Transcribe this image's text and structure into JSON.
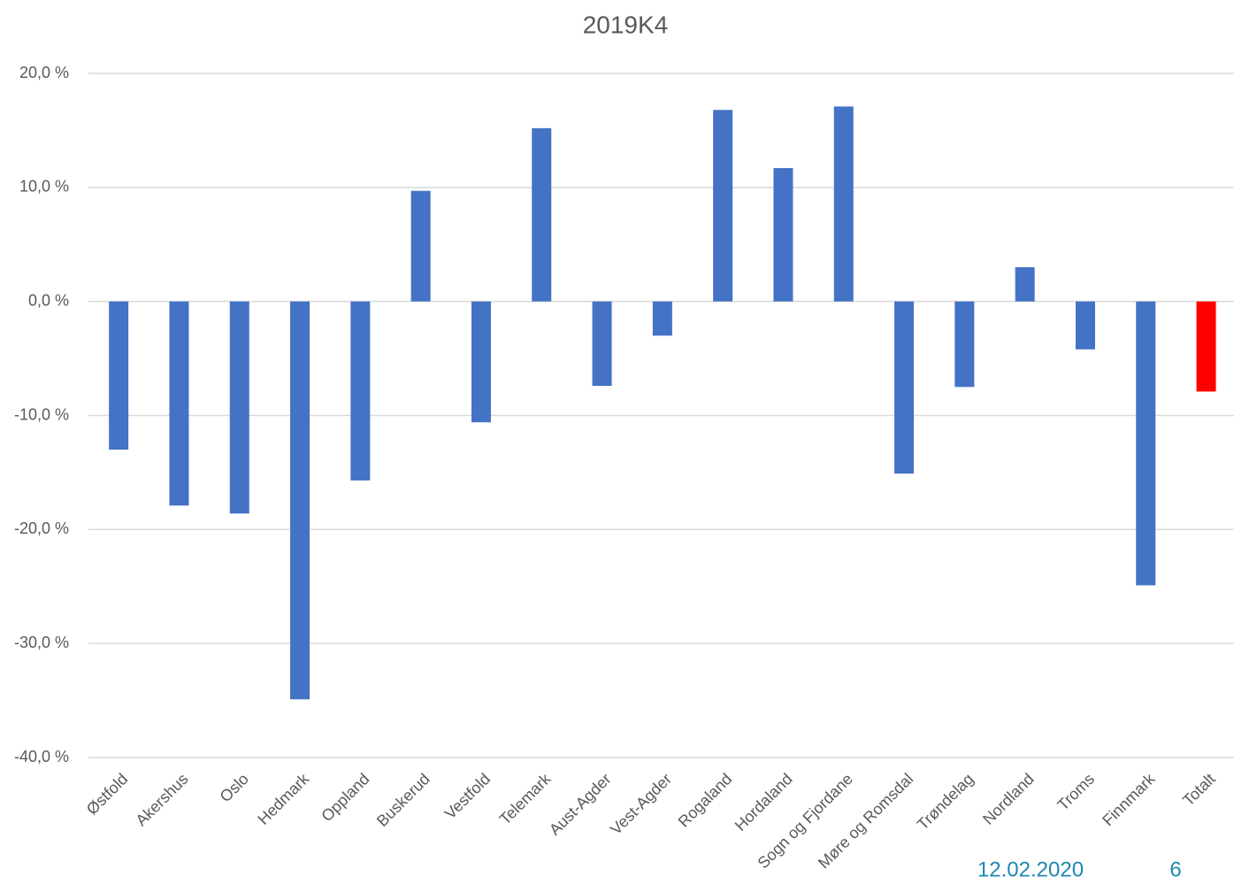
{
  "chart_data": {
    "type": "bar",
    "title": "2019K4",
    "categories": [
      "Østfold",
      "Akershus",
      "Oslo",
      "Hedmark",
      "Oppland",
      "Buskerud",
      "Vestfold",
      "Telemark",
      "Aust-Agder",
      "Vest-Agder",
      "Rogaland",
      "Hordaland",
      "Sogn og Fjordane",
      "Møre og Romsdal",
      "Trøndelag",
      "Nordland",
      "Troms",
      "Finnmark",
      "Totalt"
    ],
    "values": [
      -13.0,
      -17.9,
      -18.6,
      -34.9,
      -15.7,
      9.7,
      -10.6,
      15.2,
      -7.4,
      -3.0,
      16.8,
      11.7,
      17.1,
      -15.1,
      -7.5,
      3.0,
      -4.2,
      -24.9,
      -7.9
    ],
    "colors": [
      "#4472c4",
      "#4472c4",
      "#4472c4",
      "#4472c4",
      "#4472c4",
      "#4472c4",
      "#4472c4",
      "#4472c4",
      "#4472c4",
      "#4472c4",
      "#4472c4",
      "#4472c4",
      "#4472c4",
      "#4472c4",
      "#4472c4",
      "#4472c4",
      "#4472c4",
      "#4472c4",
      "#ff0000"
    ],
    "ylim": [
      -40,
      20
    ],
    "yticks": [
      {
        "value": -40,
        "label": "-40,0 %"
      },
      {
        "value": -30,
        "label": "-30,0 %"
      },
      {
        "value": -20,
        "label": "-20,0 %"
      },
      {
        "value": -10,
        "label": "-10,0 %"
      },
      {
        "value": 0,
        "label": "0,0 %"
      },
      {
        "value": 10,
        "label": "10,0 %"
      },
      {
        "value": 20,
        "label": "20,0 %"
      }
    ],
    "grid": true
  },
  "footer": {
    "date": "12.02.2020",
    "page": "6"
  }
}
